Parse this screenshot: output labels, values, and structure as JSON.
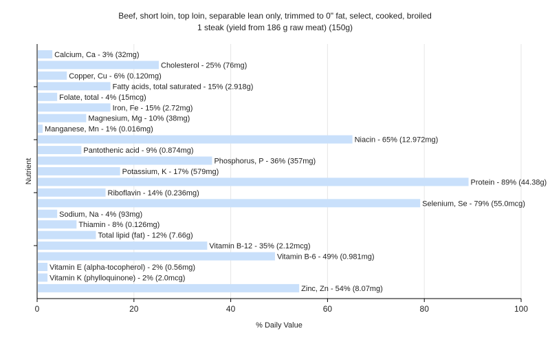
{
  "chart_data": {
    "type": "bar",
    "orientation": "horizontal",
    "title": "Beef, short loin, top loin, separable lean only, trimmed to 0\" fat, select, cooked, broiled",
    "subtitle": "1 steak (yield from 186 g raw meat) (150g)",
    "xlabel": "% Daily Value",
    "ylabel": "Nutrient",
    "xlim": [
      0,
      100
    ],
    "xticks": [
      0,
      20,
      40,
      60,
      80,
      100
    ],
    "grid": true,
    "bar_color": "#c9e0fb",
    "categories": [
      "Calcium, Ca",
      "Cholesterol",
      "Copper, Cu",
      "Fatty acids, total saturated",
      "Folate, total",
      "Iron, Fe",
      "Magnesium, Mg",
      "Manganese, Mn",
      "Niacin",
      "Pantothenic acid",
      "Phosphorus, P",
      "Potassium, K",
      "Protein",
      "Riboflavin",
      "Selenium, Se",
      "Sodium, Na",
      "Thiamin",
      "Total lipid (fat)",
      "Vitamin B-12",
      "Vitamin B-6",
      "Vitamin E (alpha-tocopherol)",
      "Vitamin K (phylloquinone)",
      "Zinc, Zn"
    ],
    "values": [
      3,
      25,
      6,
      15,
      4,
      15,
      10,
      1,
      65,
      9,
      36,
      17,
      89,
      14,
      79,
      4,
      8,
      12,
      35,
      49,
      2,
      2,
      54
    ],
    "labels": [
      "Calcium, Ca - 3% (32mg)",
      "Cholesterol - 25% (76mg)",
      "Copper, Cu - 6% (0.120mg)",
      "Fatty acids, total saturated - 15% (2.918g)",
      "Folate, total - 4% (15mcg)",
      "Iron, Fe - 15% (2.72mg)",
      "Magnesium, Mg - 10% (38mg)",
      "Manganese, Mn - 1% (0.016mg)",
      "Niacin - 65% (12.972mg)",
      "Pantothenic acid - 9% (0.874mg)",
      "Phosphorus, P - 36% (357mg)",
      "Potassium, K - 17% (579mg)",
      "Protein - 89% (44.38g)",
      "Riboflavin - 14% (0.236mg)",
      "Selenium, Se - 79% (55.0mcg)",
      "Sodium, Na - 4% (93mg)",
      "Thiamin - 8% (0.126mg)",
      "Total lipid (fat) - 12% (7.66g)",
      "Vitamin B-12 - 35% (2.12mcg)",
      "Vitamin B-6 - 49% (0.981mg)",
      "Vitamin E (alpha-tocopherol) - 2% (0.56mg)",
      "Vitamin K (phylloquinone) - 2% (2.0mcg)",
      "Zinc, Zn - 54% (8.07mg)"
    ]
  }
}
